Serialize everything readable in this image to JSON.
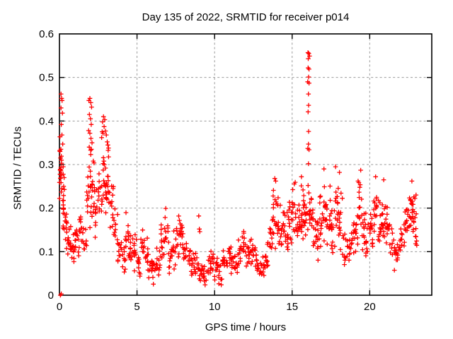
{
  "chart_data": {
    "type": "scatter",
    "title": "Day 135 of 2022, SRMTID for receiver p014",
    "xlabel": "GPS time / hours",
    "ylabel": "SRMTID / TECUs",
    "xlim": [
      0,
      24
    ],
    "ylim": [
      0,
      0.6
    ],
    "xticks": [
      "0",
      "5",
      "10",
      "15",
      "20"
    ],
    "yticks": [
      "0",
      "0.1",
      "0.2",
      "0.3",
      "0.4",
      "0.5",
      "0.6"
    ],
    "grid": "dotted-major",
    "legend": "none",
    "marker": "plus",
    "marker_color": "#ff0000",
    "axis_color": "#000000",
    "grid_color": "#999999",
    "background": "#ffffff",
    "seed": 135,
    "points": [
      [
        0.06,
        0.0
      ],
      [
        0.12,
        0.003
      ],
      [
        0.1,
        0.462
      ],
      [
        0.14,
        0.452
      ],
      [
        0.1,
        0.43
      ],
      [
        0.17,
        0.447
      ],
      [
        0.19,
        0.418
      ],
      [
        0.12,
        0.392
      ],
      [
        0.16,
        0.368
      ],
      [
        0.21,
        0.347
      ],
      [
        0.09,
        0.335
      ],
      [
        0.13,
        0.31
      ],
      [
        0.24,
        0.295
      ],
      [
        0.3,
        0.27
      ],
      [
        0.27,
        0.25
      ],
      [
        1.9,
        0.447
      ],
      [
        1.96,
        0.452
      ],
      [
        2.02,
        0.442
      ],
      [
        2.07,
        0.432
      ],
      [
        1.93,
        0.415
      ],
      [
        2.0,
        0.405
      ],
      [
        2.05,
        0.392
      ],
      [
        1.88,
        0.378
      ],
      [
        1.96,
        0.372
      ],
      [
        2.03,
        0.36
      ],
      [
        2.1,
        0.35
      ],
      [
        1.92,
        0.34
      ],
      [
        2.06,
        0.335
      ],
      [
        2.72,
        0.362
      ],
      [
        2.78,
        0.398
      ],
      [
        2.84,
        0.41
      ],
      [
        2.92,
        0.403
      ],
      [
        2.88,
        0.387
      ],
      [
        2.97,
        0.377
      ],
      [
        3.02,
        0.368
      ],
      [
        3.08,
        0.352
      ],
      [
        3.12,
        0.345
      ],
      [
        3.16,
        0.338
      ],
      [
        2.81,
        0.372
      ],
      [
        8.98,
        0.182
      ],
      [
        9.02,
        0.152
      ],
      [
        9.05,
        0.146
      ],
      [
        13.88,
        0.268
      ],
      [
        13.94,
        0.262
      ],
      [
        16.02,
        0.557
      ],
      [
        16.07,
        0.555
      ],
      [
        16.12,
        0.549
      ],
      [
        16.04,
        0.543
      ],
      [
        16.03,
        0.522
      ],
      [
        16.09,
        0.519
      ],
      [
        16.06,
        0.501
      ],
      [
        16.0,
        0.49
      ],
      [
        16.09,
        0.487
      ],
      [
        16.05,
        0.462
      ],
      [
        16.06,
        0.436
      ],
      [
        16.03,
        0.421
      ],
      [
        16.06,
        0.376
      ],
      [
        16.05,
        0.347
      ],
      [
        16.01,
        0.337
      ],
      [
        16.09,
        0.334
      ],
      [
        16.05,
        0.302
      ],
      [
        16.03,
        0.252
      ],
      [
        16.08,
        0.235
      ],
      [
        17.05,
        0.29
      ],
      [
        17.8,
        0.295
      ],
      [
        19.42,
        0.287
      ],
      [
        20.38,
        0.272
      ],
      [
        20.9,
        0.265
      ],
      [
        22.72,
        0.262
      ],
      [
        18.05,
        0.282
      ],
      [
        15.6,
        0.272
      ]
    ],
    "bands": [
      [
        0.0,
        0.2,
        0.18,
        0.38,
        20
      ],
      [
        0.2,
        0.35,
        0.14,
        0.3,
        14
      ],
      [
        0.35,
        0.5,
        0.09,
        0.2,
        10
      ],
      [
        0.5,
        0.75,
        0.07,
        0.17,
        12
      ],
      [
        0.75,
        1.0,
        0.06,
        0.15,
        12
      ],
      [
        1.0,
        1.25,
        0.08,
        0.18,
        12
      ],
      [
        1.25,
        1.5,
        0.1,
        0.2,
        12
      ],
      [
        1.5,
        1.75,
        0.08,
        0.17,
        10
      ],
      [
        1.75,
        2.0,
        0.12,
        0.32,
        14
      ],
      [
        2.0,
        2.25,
        0.15,
        0.35,
        16
      ],
      [
        2.25,
        2.5,
        0.12,
        0.26,
        12
      ],
      [
        2.5,
        2.75,
        0.15,
        0.31,
        12
      ],
      [
        2.75,
        3.0,
        0.18,
        0.38,
        16
      ],
      [
        3.0,
        3.25,
        0.17,
        0.36,
        16
      ],
      [
        3.25,
        3.5,
        0.13,
        0.28,
        12
      ],
      [
        3.5,
        3.75,
        0.1,
        0.22,
        10
      ],
      [
        3.75,
        4.0,
        0.06,
        0.16,
        10
      ],
      [
        4.0,
        4.25,
        0.04,
        0.13,
        10
      ],
      [
        4.25,
        4.5,
        0.07,
        0.2,
        12
      ],
      [
        4.5,
        4.75,
        0.06,
        0.17,
        10
      ],
      [
        4.75,
        5.0,
        0.05,
        0.14,
        10
      ],
      [
        5.0,
        5.25,
        0.04,
        0.12,
        10
      ],
      [
        5.25,
        5.5,
        0.06,
        0.16,
        10
      ],
      [
        5.5,
        5.75,
        0.05,
        0.14,
        10
      ],
      [
        5.75,
        6.0,
        0.03,
        0.1,
        10
      ],
      [
        6.0,
        6.25,
        0.02,
        0.09,
        10
      ],
      [
        6.25,
        6.5,
        0.04,
        0.13,
        10
      ],
      [
        6.5,
        6.75,
        0.06,
        0.18,
        12
      ],
      [
        6.75,
        7.0,
        0.07,
        0.21,
        12
      ],
      [
        7.0,
        7.25,
        0.04,
        0.13,
        10
      ],
      [
        7.25,
        7.5,
        0.05,
        0.15,
        10
      ],
      [
        7.5,
        7.75,
        0.08,
        0.19,
        12
      ],
      [
        7.75,
        8.0,
        0.08,
        0.21,
        12
      ],
      [
        8.0,
        8.25,
        0.05,
        0.14,
        10
      ],
      [
        8.25,
        8.5,
        0.04,
        0.12,
        10
      ],
      [
        8.5,
        8.75,
        0.03,
        0.1,
        10
      ],
      [
        8.75,
        9.0,
        0.03,
        0.11,
        10
      ],
      [
        9.0,
        9.25,
        0.02,
        0.08,
        10
      ],
      [
        9.25,
        9.5,
        0.02,
        0.07,
        10
      ],
      [
        9.5,
        9.75,
        0.03,
        0.1,
        10
      ],
      [
        9.75,
        10.0,
        0.04,
        0.12,
        10
      ],
      [
        10.0,
        10.25,
        0.03,
        0.1,
        10
      ],
      [
        10.25,
        10.5,
        0.01,
        0.08,
        10
      ],
      [
        10.5,
        10.75,
        0.04,
        0.11,
        10
      ],
      [
        10.75,
        11.0,
        0.05,
        0.13,
        10
      ],
      [
        11.0,
        11.25,
        0.04,
        0.12,
        10
      ],
      [
        11.25,
        11.5,
        0.03,
        0.1,
        10
      ],
      [
        11.5,
        11.75,
        0.05,
        0.13,
        10
      ],
      [
        11.75,
        12.0,
        0.06,
        0.16,
        10
      ],
      [
        12.0,
        12.25,
        0.05,
        0.13,
        10
      ],
      [
        12.25,
        12.5,
        0.06,
        0.15,
        10
      ],
      [
        12.5,
        12.75,
        0.05,
        0.13,
        10
      ],
      [
        12.75,
        13.0,
        0.03,
        0.09,
        10
      ],
      [
        13.0,
        13.25,
        0.04,
        0.1,
        10
      ],
      [
        13.25,
        13.5,
        0.05,
        0.13,
        10
      ],
      [
        13.5,
        13.75,
        0.08,
        0.2,
        12
      ],
      [
        13.75,
        14.0,
        0.1,
        0.26,
        14
      ],
      [
        14.0,
        14.25,
        0.1,
        0.24,
        12
      ],
      [
        14.25,
        14.5,
        0.09,
        0.22,
        12
      ],
      [
        14.5,
        14.75,
        0.08,
        0.2,
        12
      ],
      [
        14.75,
        15.0,
        0.1,
        0.23,
        12
      ],
      [
        15.0,
        15.25,
        0.11,
        0.27,
        14
      ],
      [
        15.25,
        15.5,
        0.1,
        0.22,
        12
      ],
      [
        15.5,
        15.75,
        0.12,
        0.26,
        14
      ],
      [
        15.75,
        16.0,
        0.13,
        0.28,
        14
      ],
      [
        16.0,
        16.25,
        0.13,
        0.24,
        12
      ],
      [
        16.25,
        16.5,
        0.1,
        0.22,
        12
      ],
      [
        16.5,
        16.75,
        0.08,
        0.19,
        12
      ],
      [
        16.75,
        17.0,
        0.1,
        0.24,
        12
      ],
      [
        17.0,
        17.25,
        0.12,
        0.28,
        14
      ],
      [
        17.25,
        17.5,
        0.1,
        0.26,
        12
      ],
      [
        17.5,
        17.75,
        0.09,
        0.22,
        12
      ],
      [
        17.75,
        18.0,
        0.12,
        0.28,
        14
      ],
      [
        18.0,
        18.25,
        0.1,
        0.26,
        12
      ],
      [
        18.25,
        18.5,
        0.06,
        0.16,
        10
      ],
      [
        18.5,
        18.75,
        0.05,
        0.14,
        10
      ],
      [
        18.75,
        19.0,
        0.07,
        0.18,
        10
      ],
      [
        19.0,
        19.25,
        0.08,
        0.2,
        12
      ],
      [
        19.25,
        19.5,
        0.12,
        0.28,
        14
      ],
      [
        19.5,
        19.75,
        0.1,
        0.24,
        12
      ],
      [
        19.75,
        20.0,
        0.07,
        0.18,
        10
      ],
      [
        20.0,
        20.25,
        0.09,
        0.22,
        12
      ],
      [
        20.25,
        20.5,
        0.12,
        0.27,
        14
      ],
      [
        20.5,
        20.75,
        0.1,
        0.23,
        12
      ],
      [
        20.75,
        21.0,
        0.12,
        0.26,
        12
      ],
      [
        21.0,
        21.25,
        0.1,
        0.24,
        12
      ],
      [
        21.25,
        21.5,
        0.07,
        0.18,
        10
      ],
      [
        21.5,
        21.75,
        0.05,
        0.14,
        10
      ],
      [
        21.75,
        22.0,
        0.06,
        0.15,
        10
      ],
      [
        22.0,
        22.25,
        0.08,
        0.18,
        10
      ],
      [
        22.25,
        22.5,
        0.1,
        0.22,
        12
      ],
      [
        22.5,
        22.75,
        0.12,
        0.26,
        14
      ],
      [
        22.75,
        23.0,
        0.13,
        0.25,
        14
      ],
      [
        22.95,
        23.1,
        0.08,
        0.16,
        5
      ]
    ]
  }
}
